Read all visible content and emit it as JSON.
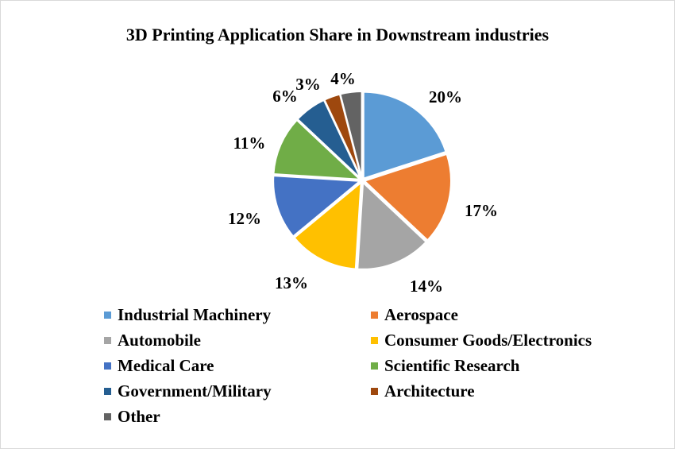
{
  "chart_data": {
    "type": "pie",
    "title": "3D Printing Application Share in Downstream industries",
    "categories": [
      "Industrial Machinery",
      "Aerospace",
      "Automobile",
      "Consumer Goods/Electronics",
      "Medical Care",
      "Scientific Research",
      "Government/Military",
      "Architecture",
      "Other"
    ],
    "values": [
      20,
      17,
      14,
      13,
      12,
      11,
      6,
      3,
      4
    ],
    "value_labels": [
      "20%",
      "17%",
      "14%",
      "13%",
      "12%",
      "11%",
      "6%",
      "3%",
      "4%"
    ],
    "colors": [
      "#5b9bd5",
      "#ed7d31",
      "#a5a5a5",
      "#ffc000",
      "#4472c4",
      "#70ad47",
      "#255e91",
      "#9e480e",
      "#636363"
    ],
    "legend_position": "bottom",
    "slice_border": "#ffffff"
  }
}
